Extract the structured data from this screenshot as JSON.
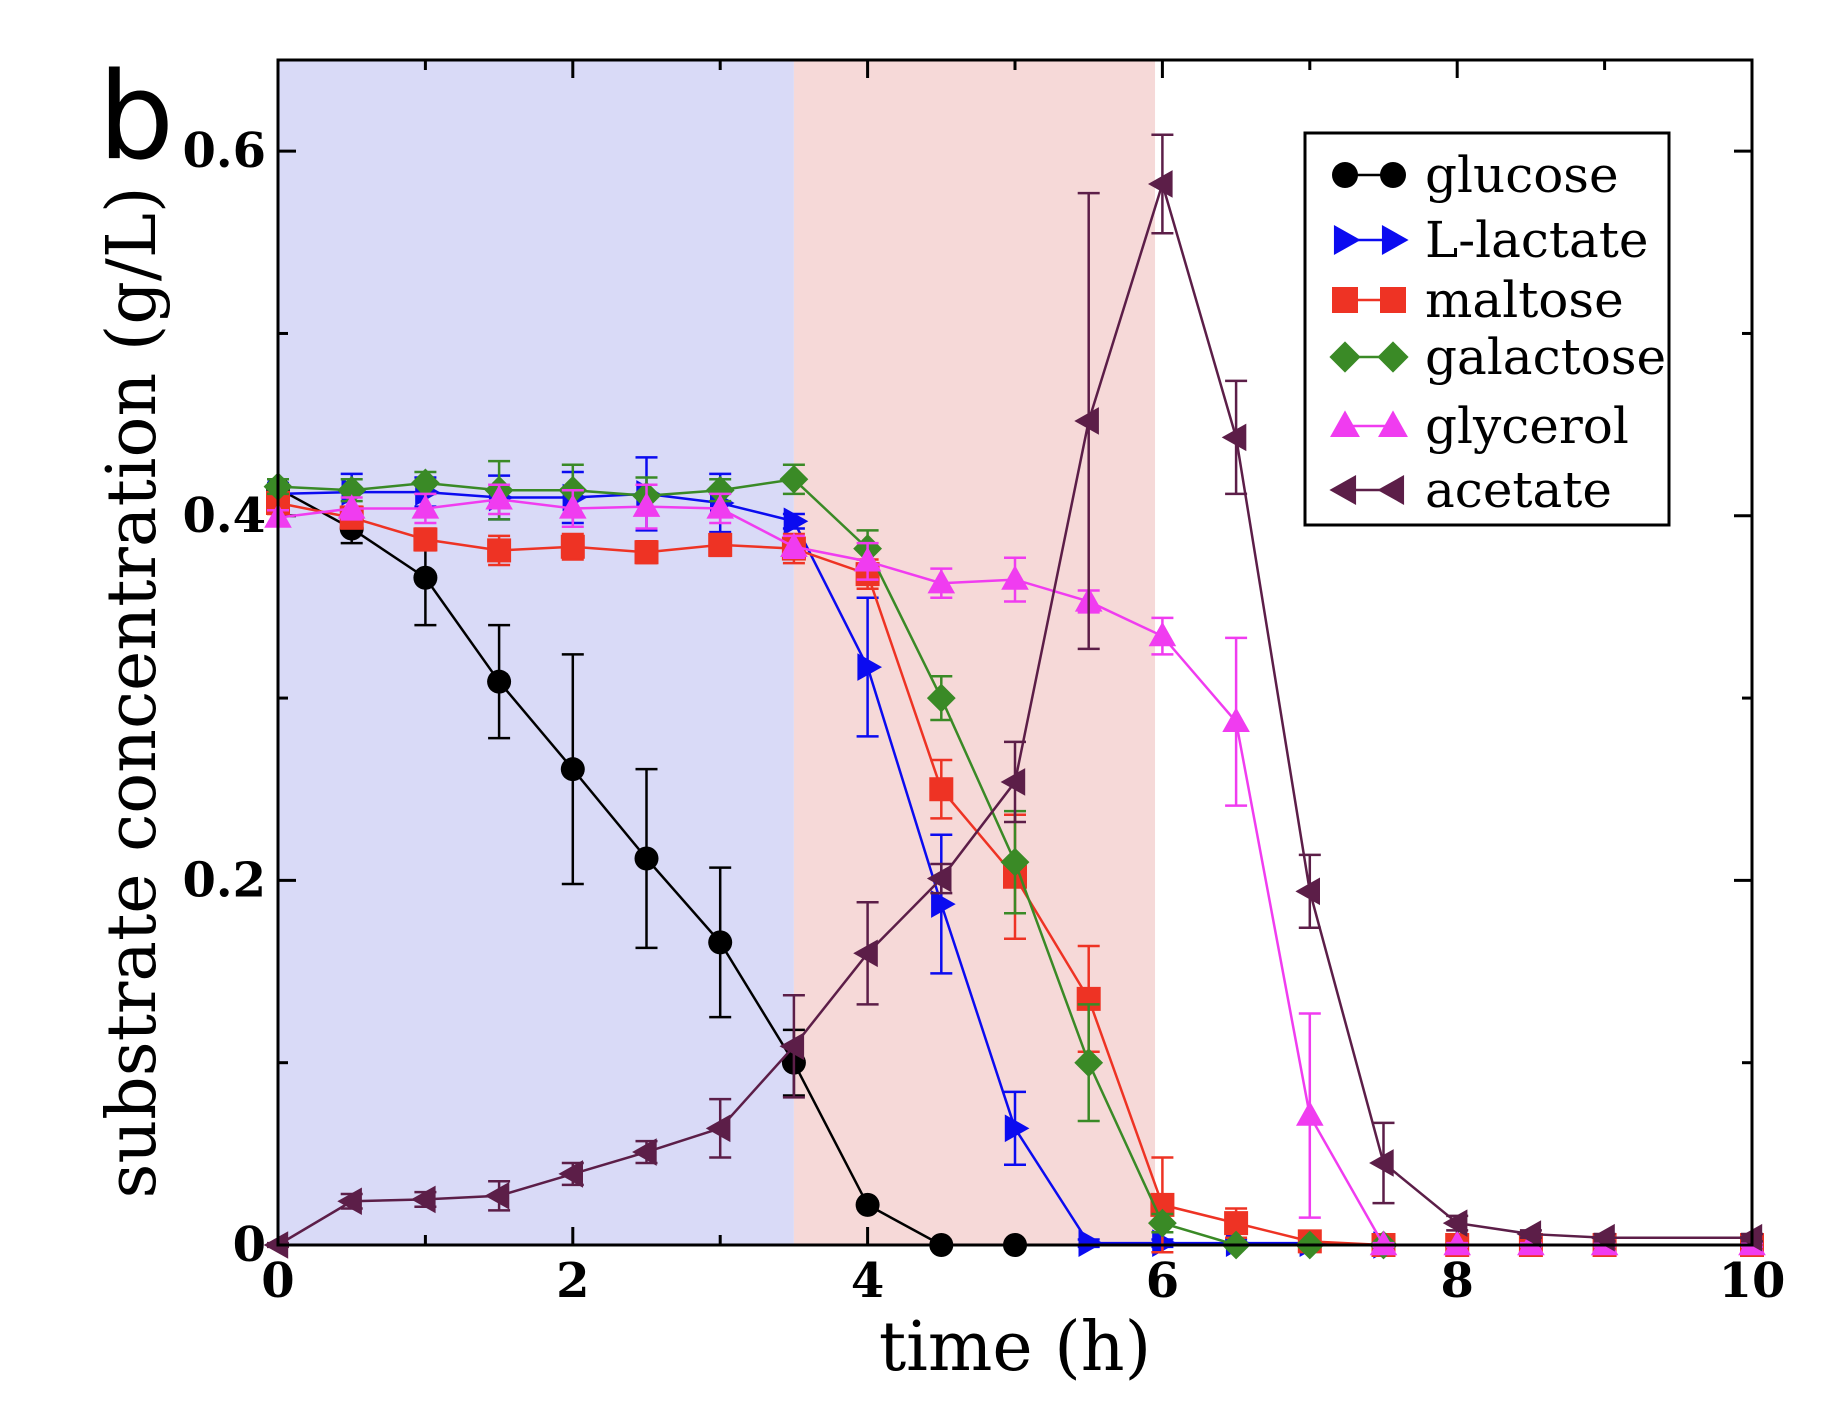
{
  "chart_data": {
    "type": "line",
    "panel_label": "b",
    "xlabel": "time (h)",
    "ylabel": "substrate concentration (g/L)",
    "xlim": [
      0,
      10
    ],
    "ylim": [
      0,
      0.65
    ],
    "x_ticks": [
      0,
      2,
      4,
      6,
      8,
      10
    ],
    "x_tick_labels": [
      "0",
      "2",
      "4",
      "6",
      "8",
      "10"
    ],
    "y_ticks": [
      0,
      0.2,
      0.4,
      0.6
    ],
    "y_tick_labels": [
      "0",
      "0.2",
      "0.4",
      "0.6"
    ],
    "shaded_regions": [
      {
        "x_start": 0,
        "x_end": 3.5,
        "color": "#d9daf7"
      },
      {
        "x_start": 3.5,
        "x_end": 5.95,
        "color": "#f6d9d8"
      }
    ],
    "legend_position": "top-right",
    "series": [
      {
        "name": "glucose",
        "color": "#000000",
        "marker": "circle",
        "x": [
          0,
          0.5,
          1,
          1.5,
          2,
          2.5,
          3,
          3.5,
          4,
          4.5,
          5
        ],
        "y": [
          0.415,
          0.393,
          0.366,
          0.309,
          0.261,
          0.212,
          0.166,
          0.1,
          0.022,
          0.0,
          0.0
        ],
        "err": [
          0.005,
          0.008,
          0.026,
          0.031,
          0.063,
          0.049,
          0.041,
          0.018,
          0.002,
          0.001,
          0.001
        ]
      },
      {
        "name": "L-lactate",
        "color": "#0b0bf0",
        "marker": "triangle-right",
        "x": [
          0,
          0.5,
          1,
          1.5,
          2,
          2.5,
          3,
          3.5,
          4,
          4.5,
          5,
          5.5,
          6,
          6.5,
          7,
          7.5
        ],
        "y": [
          0.412,
          0.413,
          0.413,
          0.41,
          0.41,
          0.412,
          0.407,
          0.397,
          0.317,
          0.187,
          0.064,
          0.001,
          0.001,
          0.001,
          0.001,
          0.0
        ],
        "err": [
          0.006,
          0.01,
          0.008,
          0.012,
          0.014,
          0.02,
          0.016,
          0.004,
          0.038,
          0.038,
          0.02,
          0.002,
          0.002,
          0.002,
          0.002,
          0.001
        ]
      },
      {
        "name": "maltose",
        "color": "#ee3324",
        "marker": "square",
        "x": [
          0,
          0.5,
          1,
          1.5,
          2,
          2.5,
          3,
          3.5,
          4,
          4.5,
          5,
          5.5,
          6,
          6.5,
          7,
          7.5,
          8,
          8.5,
          9,
          10
        ],
        "y": [
          0.407,
          0.399,
          0.387,
          0.381,
          0.383,
          0.38,
          0.384,
          0.382,
          0.368,
          0.25,
          0.202,
          0.135,
          0.022,
          0.012,
          0.002,
          0.0,
          0.0,
          0.0,
          0.0,
          0.0
        ],
        "err": [
          0.006,
          0.006,
          0.006,
          0.008,
          0.007,
          0.006,
          0.006,
          0.008,
          0.008,
          0.016,
          0.034,
          0.029,
          0.026,
          0.008,
          0.002,
          0.001,
          0.001,
          0.001,
          0.001,
          0.001
        ]
      },
      {
        "name": "galactose",
        "color": "#3a8a26",
        "marker": "diamond",
        "x": [
          0,
          0.5,
          1,
          1.5,
          2,
          2.5,
          3,
          3.5,
          4,
          4.5,
          5,
          5.5,
          6,
          6.5,
          7,
          7.5
        ],
        "y": [
          0.416,
          0.414,
          0.418,
          0.414,
          0.414,
          0.411,
          0.414,
          0.42,
          0.382,
          0.3,
          0.21,
          0.1,
          0.012,
          0.0,
          0.0,
          0.0
        ],
        "err": [
          0.004,
          0.006,
          0.006,
          0.016,
          0.014,
          0.01,
          0.006,
          0.008,
          0.01,
          0.012,
          0.028,
          0.032,
          0.005,
          0.001,
          0.001,
          0.001
        ]
      },
      {
        "name": "glycerol",
        "color": "#f03cf0",
        "marker": "triangle-up",
        "x": [
          0,
          0.5,
          1,
          1.5,
          2,
          2.5,
          3,
          3.5,
          4,
          4.5,
          5,
          5.5,
          6,
          6.5,
          7,
          7.5,
          8,
          8.5,
          9,
          10
        ],
        "y": [
          0.399,
          0.404,
          0.404,
          0.409,
          0.404,
          0.405,
          0.404,
          0.383,
          0.375,
          0.363,
          0.365,
          0.353,
          0.334,
          0.287,
          0.071,
          0.0,
          0.0,
          0.0,
          0.0,
          0.0
        ],
        "err": [
          0.004,
          0.006,
          0.008,
          0.008,
          0.01,
          0.012,
          0.008,
          0.006,
          0.01,
          0.008,
          0.012,
          0.006,
          0.01,
          0.046,
          0.056,
          0.001,
          0.001,
          0.001,
          0.001,
          0.001
        ]
      },
      {
        "name": "acetate",
        "color": "#5c1e48",
        "marker": "triangle-left",
        "x": [
          0,
          0.5,
          1,
          1.5,
          2,
          2.5,
          3,
          3.5,
          4,
          4.5,
          5,
          5.5,
          6,
          6.5,
          7,
          7.5,
          8,
          8.5,
          9,
          10
        ],
        "y": [
          0.0,
          0.024,
          0.025,
          0.027,
          0.039,
          0.051,
          0.064,
          0.109,
          0.16,
          0.201,
          0.254,
          0.452,
          0.582,
          0.443,
          0.194,
          0.045,
          0.012,
          0.006,
          0.004,
          0.004
        ],
        "err": [
          0.001,
          0.004,
          0.004,
          0.008,
          0.006,
          0.006,
          0.016,
          0.028,
          0.028,
          0.008,
          0.022,
          0.125,
          0.027,
          0.031,
          0.02,
          0.022,
          0.004,
          0.002,
          0.002,
          0.002
        ]
      }
    ]
  }
}
